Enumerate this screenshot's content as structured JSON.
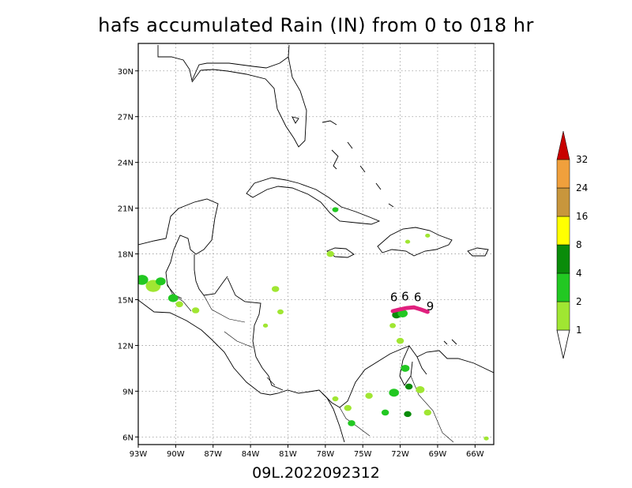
{
  "title": "hafs accumulated Rain (IN) from 0 to 018 hr",
  "subtitle": "09L.2022092312",
  "map": {
    "lon_range": [
      -93,
      -64.5
    ],
    "lat_range": [
      5.5,
      31.8
    ],
    "lon_ticks": [
      {
        "value": -93,
        "label": "93W"
      },
      {
        "value": -90,
        "label": "90W"
      },
      {
        "value": -87,
        "label": "87W"
      },
      {
        "value": -84,
        "label": "84W"
      },
      {
        "value": -81,
        "label": "81W"
      },
      {
        "value": -78,
        "label": "78W"
      },
      {
        "value": -75,
        "label": "75W"
      },
      {
        "value": -72,
        "label": "72W"
      },
      {
        "value": -69,
        "label": "69W"
      },
      {
        "value": -66,
        "label": "66W"
      }
    ],
    "lat_ticks": [
      {
        "value": 6,
        "label": "6N"
      },
      {
        "value": 9,
        "label": "9N"
      },
      {
        "value": 12,
        "label": "12N"
      },
      {
        "value": 15,
        "label": "15N"
      },
      {
        "value": 18,
        "label": "18N"
      },
      {
        "value": 21,
        "label": "21N"
      },
      {
        "value": 24,
        "label": "24N"
      },
      {
        "value": 27,
        "label": "27N"
      },
      {
        "value": 30,
        "label": "30N"
      }
    ],
    "grid": "dotted",
    "track_labels": [
      {
        "text": "6",
        "lon": -72.5,
        "lat": 14.9
      },
      {
        "text": "6",
        "lon": -71.6,
        "lat": 14.95
      },
      {
        "text": "6",
        "lon": -70.6,
        "lat": 14.9
      },
      {
        "text": "9",
        "lon": -69.6,
        "lat": 14.3
      }
    ],
    "track_color": "#e0207e"
  },
  "legend": {
    "bins": [
      {
        "label": "1",
        "color": "#a0e632"
      },
      {
        "label": "2",
        "color": "#22c822"
      },
      {
        "label": "4",
        "color": "#0a8c0a"
      },
      {
        "label": "8",
        "color": "#ffff00"
      },
      {
        "label": "16",
        "color": "#ffff00"
      },
      {
        "label": "24",
        "color": "#c8963c"
      },
      {
        "label": "32",
        "color": "#f0a03c"
      }
    ],
    "segments": [
      "#a0e632",
      "#22c822",
      "#0a8c0a",
      "#ffff00",
      "#c8963c",
      "#f0a03c"
    ],
    "over_color": "#c80000",
    "under_color": "#ffffff"
  },
  "rain_patches": [
    {
      "lon": -92.7,
      "lat": 16.3,
      "r": 0.5,
      "color": "#22c822"
    },
    {
      "lon": -91.8,
      "lat": 15.9,
      "r": 0.6,
      "color": "#a0e632"
    },
    {
      "lon": -91.2,
      "lat": 16.2,
      "r": 0.4,
      "color": "#22c822"
    },
    {
      "lon": -90.2,
      "lat": 15.1,
      "r": 0.4,
      "color": "#22c822"
    },
    {
      "lon": -89.7,
      "lat": 14.7,
      "r": 0.3,
      "color": "#a0e632"
    },
    {
      "lon": -88.4,
      "lat": 14.3,
      "r": 0.3,
      "color": "#a0e632"
    },
    {
      "lon": -82.0,
      "lat": 15.7,
      "r": 0.3,
      "color": "#a0e632"
    },
    {
      "lon": -81.6,
      "lat": 14.2,
      "r": 0.25,
      "color": "#a0e632"
    },
    {
      "lon": -82.8,
      "lat": 13.3,
      "r": 0.2,
      "color": "#a0e632"
    },
    {
      "lon": -77.2,
      "lat": 20.9,
      "r": 0.25,
      "color": "#22c822"
    },
    {
      "lon": -77.6,
      "lat": 18.0,
      "r": 0.3,
      "color": "#a0e632"
    },
    {
      "lon": -71.4,
      "lat": 18.8,
      "r": 0.2,
      "color": "#a0e632"
    },
    {
      "lon": -69.8,
      "lat": 19.2,
      "r": 0.2,
      "color": "#a0e632"
    },
    {
      "lon": -72.3,
      "lat": 14.0,
      "r": 0.35,
      "color": "#0a8c0a"
    },
    {
      "lon": -71.8,
      "lat": 14.1,
      "r": 0.4,
      "color": "#22c822"
    },
    {
      "lon": -72.6,
      "lat": 13.3,
      "r": 0.25,
      "color": "#a0e632"
    },
    {
      "lon": -72.0,
      "lat": 12.3,
      "r": 0.3,
      "color": "#a0e632"
    },
    {
      "lon": -71.6,
      "lat": 10.5,
      "r": 0.35,
      "color": "#22c822"
    },
    {
      "lon": -72.5,
      "lat": 8.9,
      "r": 0.4,
      "color": "#22c822"
    },
    {
      "lon": -71.3,
      "lat": 9.3,
      "r": 0.3,
      "color": "#0a8c0a"
    },
    {
      "lon": -70.4,
      "lat": 9.1,
      "r": 0.35,
      "color": "#a0e632"
    },
    {
      "lon": -71.4,
      "lat": 7.5,
      "r": 0.3,
      "color": "#0a8c0a"
    },
    {
      "lon": -73.2,
      "lat": 7.6,
      "r": 0.3,
      "color": "#22c822"
    },
    {
      "lon": -74.5,
      "lat": 8.7,
      "r": 0.3,
      "color": "#a0e632"
    },
    {
      "lon": -76.2,
      "lat": 7.9,
      "r": 0.3,
      "color": "#a0e632"
    },
    {
      "lon": -75.9,
      "lat": 6.9,
      "r": 0.3,
      "color": "#22c822"
    },
    {
      "lon": -77.2,
      "lat": 8.5,
      "r": 0.25,
      "color": "#a0e632"
    },
    {
      "lon": -69.8,
      "lat": 7.6,
      "r": 0.3,
      "color": "#a0e632"
    },
    {
      "lon": -65.1,
      "lat": 5.9,
      "r": 0.2,
      "color": "#a0e632"
    }
  ]
}
